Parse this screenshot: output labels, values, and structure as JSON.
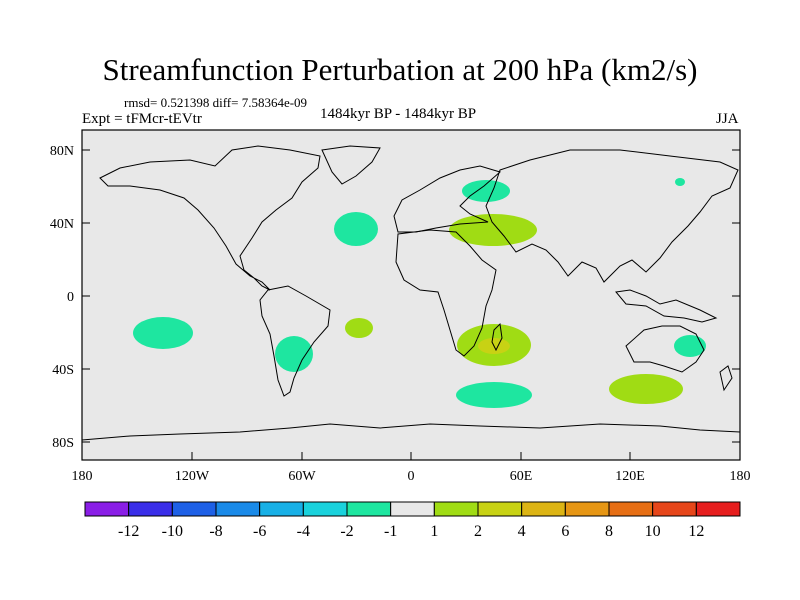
{
  "title": "Streamfunction Perturbation at 200 hPa (km2/s)",
  "stats": "rmsd= 0.521398 diff= 7.58364e-09",
  "experiment": "Expt = tFMcr-tEVtr",
  "period": "1484kyr BP - 1484kyr BP",
  "season": "JJA",
  "axes": {
    "lat_ticks": [
      "80N",
      "40N",
      "0",
      "40S",
      "80S"
    ],
    "lon_ticks": [
      "180",
      "120W",
      "60W",
      "0",
      "60E",
      "120E",
      "180"
    ]
  },
  "colorbar": {
    "colors": [
      "#8a1ee6",
      "#3a2ee8",
      "#1e60e6",
      "#1a8ae8",
      "#18b0e6",
      "#1ad2dc",
      "#1ee6a0",
      "#e8e8e8",
      "#a0dc14",
      "#c8d214",
      "#dcb414",
      "#e69614",
      "#e66e14",
      "#e6461a",
      "#e61e1e"
    ],
    "labels": [
      "-12",
      "-10",
      "-8",
      "-6",
      "-4",
      "-2",
      "-1",
      "1",
      "2",
      "4",
      "6",
      "8",
      "10",
      "12"
    ]
  },
  "colors": {
    "background": "#e8e8e8",
    "negative_anomaly": "#1ee6a0",
    "positive_anomaly": "#a0dc14",
    "strong_positive": "#c8d214",
    "coast": "#000000"
  }
}
